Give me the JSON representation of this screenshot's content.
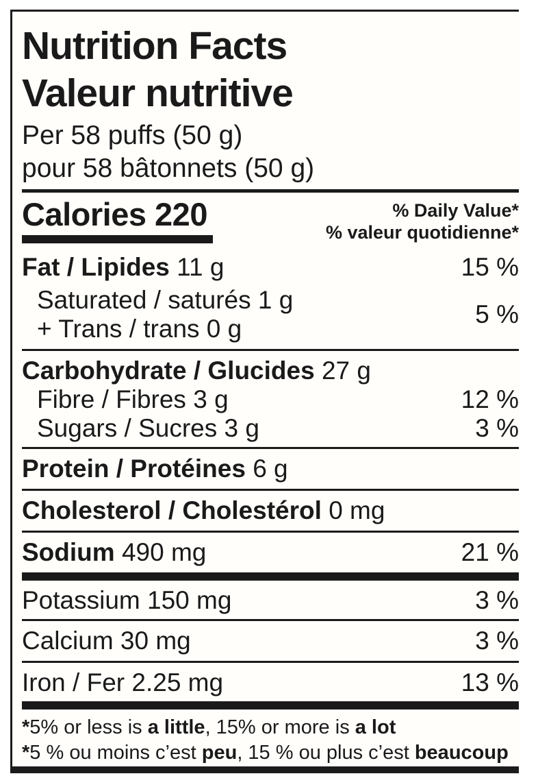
{
  "label": {
    "title_en": "Nutrition Facts",
    "title_fr": "Valeur nutritive",
    "serving_en": "Per 58 puffs (50 g)",
    "serving_fr": "pour 58 bâtonnets (50 g)",
    "calories_label": "Calories",
    "calories_value": "220",
    "dv_header_en": "% Daily Value*",
    "dv_header_fr": "% valeur quotidienne*",
    "nutrients": {
      "fat": {
        "name": "Fat / Lipides",
        "amount": "11 g",
        "dv": "15 %"
      },
      "saturated": {
        "line1": "Saturated / saturés 1 g",
        "line2": "+ Trans / trans 0 g",
        "dv": "5 %"
      },
      "carbohydrate": {
        "name": "Carbohydrate / Glucides",
        "amount": "27 g"
      },
      "fibre": {
        "name": "Fibre / Fibres",
        "amount": "3 g",
        "dv": "12 %"
      },
      "sugars": {
        "name": "Sugars / Sucres",
        "amount": "3 g",
        "dv": "3 %"
      },
      "protein": {
        "name": "Protein / Protéines",
        "amount": "6 g"
      },
      "cholesterol": {
        "name": "Cholesterol / Cholestérol",
        "amount": "0 mg"
      },
      "sodium": {
        "name": "Sodium",
        "amount": "490 mg",
        "dv": "21 %"
      },
      "potassium": {
        "name": "Potassium",
        "amount": "150 mg",
        "dv": "3 %"
      },
      "calcium": {
        "name": "Calcium",
        "amount": "30 mg",
        "dv": "3 %"
      },
      "iron": {
        "name": "Iron / Fer",
        "amount": "2.25 mg",
        "dv": "13 %"
      }
    },
    "footnote_en": {
      "star": "*",
      "pre": "5% or less is ",
      "bold1": "a little",
      "mid": ", 15% or more is ",
      "bold2": "a lot"
    },
    "footnote_fr": {
      "star": "*",
      "pre": "5 % ou moins c’est ",
      "bold1": "peu",
      "mid": ", 15 % ou plus c’est ",
      "bold2": "beaucoup"
    }
  },
  "colors": {
    "text": "#1a1a1a",
    "background": "#fffefa",
    "rule": "#1a1a1a"
  }
}
